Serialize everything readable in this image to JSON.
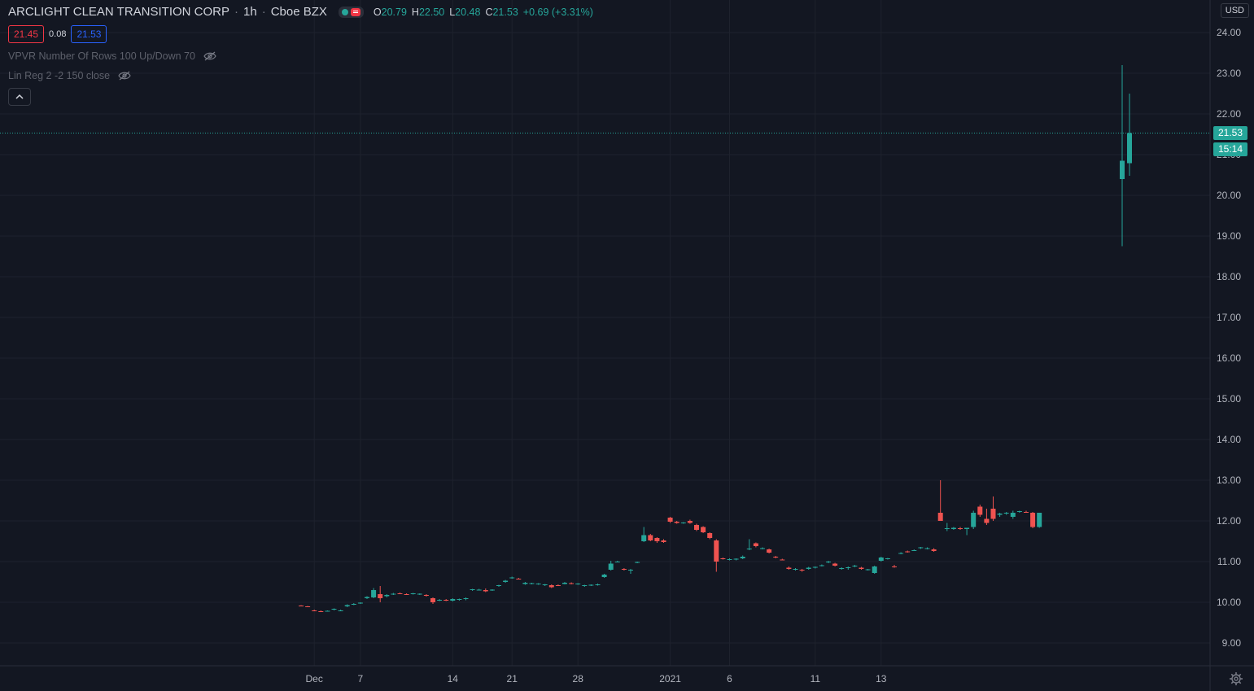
{
  "header": {
    "symbol_name": "ARCLIGHT CLEAN TRANSITION CORP",
    "interval": "1h",
    "exchange": "Cboe BZX",
    "ohlc": {
      "o_label": "O",
      "o_value": "20.79",
      "h_label": "H",
      "h_value": "22.50",
      "l_label": "L",
      "l_value": "20.48",
      "c_label": "C",
      "c_value": "21.53",
      "change": "+0.69 (+3.31%)"
    }
  },
  "quote": {
    "bid": "21.45",
    "spread": "0.08",
    "ask": "21.53"
  },
  "indicators": [
    {
      "label": "VPVR Number Of Rows 100 Up/Down 70"
    },
    {
      "label": "Lin Reg 2 -2 150 close"
    }
  ],
  "currency": "USD",
  "last_price_label": "21.53",
  "countdown_label": "15:14",
  "colors": {
    "up": "#26a69a",
    "down": "#ef5350",
    "background": "#131722",
    "grid": "#1e222d",
    "text": "#b2b5be"
  },
  "icons": {
    "visibility": "eye-crossed-icon",
    "collapse": "chevron-up-icon",
    "settings": "gear-icon"
  },
  "chart_data": {
    "type": "candlestick",
    "price_axis": {
      "min": 8.5,
      "max": 24.5,
      "ticks": [
        "24.00",
        "23.00",
        "22.00",
        "21.00",
        "20.00",
        "19.00",
        "18.00",
        "17.00",
        "16.00",
        "15.00",
        "14.00",
        "13.00",
        "12.00",
        "11.00",
        "10.00",
        "9.00"
      ]
    },
    "time_axis": {
      "min_bar": 0,
      "max_bar": 128,
      "ticks": [
        {
          "bar": 2,
          "label": "Dec"
        },
        {
          "bar": 9,
          "label": "7"
        },
        {
          "bar": 23,
          "label": "14"
        },
        {
          "bar": 32,
          "label": "21"
        },
        {
          "bar": 42,
          "label": "28"
        },
        {
          "bar": 56,
          "label": "2021"
        },
        {
          "bar": 65,
          "label": "6"
        },
        {
          "bar": 78,
          "label": "11"
        },
        {
          "bar": 88,
          "label": "13"
        }
      ]
    },
    "last_price": 21.53,
    "candles": [
      [
        9.92,
        9.93,
        9.9,
        9.91
      ],
      [
        9.9,
        9.91,
        9.88,
        9.89
      ],
      [
        9.8,
        9.82,
        9.78,
        9.79
      ],
      [
        9.78,
        9.8,
        9.76,
        9.77
      ],
      [
        9.78,
        9.8,
        9.77,
        9.79
      ],
      [
        9.82,
        9.85,
        9.8,
        9.84
      ],
      [
        9.8,
        9.82,
        9.78,
        9.8
      ],
      [
        9.9,
        9.95,
        9.88,
        9.93
      ],
      [
        9.95,
        9.98,
        9.93,
        9.96
      ],
      [
        9.98,
        10.0,
        9.96,
        9.99
      ],
      [
        10.1,
        10.15,
        10.08,
        10.13
      ],
      [
        10.12,
        10.35,
        10.1,
        10.3
      ],
      [
        10.2,
        10.4,
        10.0,
        10.1
      ],
      [
        10.15,
        10.2,
        10.12,
        10.18
      ],
      [
        10.2,
        10.23,
        10.18,
        10.21
      ],
      [
        10.22,
        10.24,
        10.2,
        10.21
      ],
      [
        10.2,
        10.22,
        10.18,
        10.19
      ],
      [
        10.21,
        10.23,
        10.19,
        10.22
      ],
      [
        10.2,
        10.22,
        10.18,
        10.21
      ],
      [
        10.18,
        10.2,
        10.14,
        10.16
      ],
      [
        10.1,
        10.12,
        9.96,
        10.0
      ],
      [
        10.05,
        10.08,
        10.03,
        10.06
      ],
      [
        10.06,
        10.08,
        10.03,
        10.04
      ],
      [
        10.04,
        10.1,
        10.02,
        10.08
      ],
      [
        10.06,
        10.09,
        10.04,
        10.08
      ],
      [
        10.08,
        10.12,
        10.05,
        10.1
      ],
      [
        10.3,
        10.33,
        10.28,
        10.32
      ],
      [
        10.3,
        10.33,
        10.29,
        10.31
      ],
      [
        10.3,
        10.34,
        10.25,
        10.27
      ],
      [
        10.3,
        10.32,
        10.28,
        10.31
      ],
      [
        10.4,
        10.43,
        10.38,
        10.42
      ],
      [
        10.5,
        10.55,
        10.48,
        10.53
      ],
      [
        10.6,
        10.63,
        10.58,
        10.61
      ],
      [
        10.58,
        10.6,
        10.56,
        10.57
      ],
      [
        10.45,
        10.5,
        10.43,
        10.48
      ],
      [
        10.46,
        10.48,
        10.44,
        10.47
      ],
      [
        10.45,
        10.47,
        10.43,
        10.46
      ],
      [
        10.43,
        10.45,
        10.4,
        10.44
      ],
      [
        10.42,
        10.44,
        10.35,
        10.37
      ],
      [
        10.42,
        10.44,
        10.4,
        10.41
      ],
      [
        10.45,
        10.5,
        10.44,
        10.48
      ],
      [
        10.47,
        10.49,
        10.44,
        10.45
      ],
      [
        10.45,
        10.47,
        10.43,
        10.46
      ],
      [
        10.4,
        10.43,
        10.38,
        10.42
      ],
      [
        10.42,
        10.44,
        10.4,
        10.43
      ],
      [
        10.43,
        10.46,
        10.41,
        10.44
      ],
      [
        10.62,
        10.7,
        10.6,
        10.68
      ],
      [
        10.8,
        11.02,
        10.78,
        10.95
      ],
      [
        11.0,
        11.02,
        10.98,
        11.0
      ],
      [
        10.82,
        10.84,
        10.78,
        10.8
      ],
      [
        10.78,
        10.82,
        10.7,
        10.8
      ],
      [
        10.98,
        11.0,
        10.96,
        10.99
      ],
      [
        11.5,
        11.85,
        11.48,
        11.65
      ],
      [
        11.65,
        11.68,
        11.5,
        11.52
      ],
      [
        11.58,
        11.6,
        11.46,
        11.5
      ],
      [
        11.52,
        11.55,
        11.46,
        11.48
      ],
      [
        12.08,
        12.1,
        11.95,
        11.98
      ],
      [
        11.98,
        12.0,
        11.93,
        11.95
      ],
      [
        11.95,
        11.97,
        11.93,
        11.96
      ],
      [
        12.0,
        12.03,
        11.93,
        11.95
      ],
      [
        11.9,
        11.93,
        11.75,
        11.78
      ],
      [
        11.85,
        11.87,
        11.7,
        11.72
      ],
      [
        11.7,
        11.72,
        11.55,
        11.58
      ],
      [
        11.52,
        11.55,
        10.75,
        11.0
      ],
      [
        11.08,
        11.1,
        11.05,
        11.07
      ],
      [
        11.05,
        11.08,
        11.03,
        11.06
      ],
      [
        11.05,
        11.08,
        11.03,
        11.07
      ],
      [
        11.08,
        11.15,
        11.06,
        11.12
      ],
      [
        11.3,
        11.55,
        11.28,
        11.32
      ],
      [
        11.45,
        11.47,
        11.35,
        11.38
      ],
      [
        11.32,
        11.35,
        11.3,
        11.33
      ],
      [
        11.3,
        11.32,
        11.2,
        11.22
      ],
      [
        11.12,
        11.14,
        11.08,
        11.1
      ],
      [
        11.05,
        11.07,
        11.03,
        11.04
      ],
      [
        10.85,
        10.88,
        10.8,
        10.82
      ],
      [
        10.8,
        10.84,
        10.78,
        10.82
      ],
      [
        10.8,
        10.82,
        10.75,
        10.78
      ],
      [
        10.82,
        10.87,
        10.8,
        10.85
      ],
      [
        10.85,
        10.88,
        10.83,
        10.87
      ],
      [
        10.9,
        10.93,
        10.88,
        10.91
      ],
      [
        10.98,
        11.02,
        10.96,
        11.0
      ],
      [
        10.95,
        10.97,
        10.88,
        10.9
      ],
      [
        10.82,
        10.86,
        10.8,
        10.84
      ],
      [
        10.85,
        10.88,
        10.8,
        10.86
      ],
      [
        10.88,
        10.92,
        10.86,
        10.9
      ],
      [
        10.85,
        10.87,
        10.8,
        10.82
      ],
      [
        10.8,
        10.82,
        10.78,
        10.81
      ],
      [
        10.72,
        10.9,
        10.7,
        10.88
      ],
      [
        11.02,
        11.12,
        11.0,
        11.1
      ],
      [
        11.07,
        11.09,
        11.05,
        11.08
      ],
      [
        10.88,
        10.92,
        10.85,
        10.87
      ],
      [
        11.2,
        11.23,
        11.18,
        11.21
      ],
      [
        11.25,
        11.27,
        11.22,
        11.24
      ],
      [
        11.27,
        11.3,
        11.26,
        11.28
      ],
      [
        11.33,
        11.36,
        11.31,
        11.35
      ],
      [
        11.32,
        11.35,
        11.3,
        11.33
      ],
      [
        11.3,
        11.33,
        11.24,
        11.26
      ],
      [
        12.2,
        13.0,
        12.0,
        12.0
      ],
      [
        11.8,
        11.95,
        11.75,
        11.82
      ],
      [
        11.8,
        11.85,
        11.78,
        11.83
      ],
      [
        11.82,
        11.85,
        11.78,
        11.81
      ],
      [
        11.8,
        11.82,
        11.65,
        11.83
      ],
      [
        11.85,
        12.25,
        11.8,
        12.2
      ],
      [
        12.35,
        12.4,
        12.1,
        12.15
      ],
      [
        12.05,
        12.3,
        11.9,
        11.95
      ],
      [
        12.3,
        12.6,
        12.0,
        12.05
      ],
      [
        12.15,
        12.2,
        12.1,
        12.18
      ],
      [
        12.18,
        12.22,
        12.15,
        12.2
      ],
      [
        12.1,
        12.25,
        12.05,
        12.2
      ],
      [
        12.22,
        12.25,
        12.2,
        12.24
      ],
      [
        12.22,
        12.25,
        12.2,
        12.21
      ],
      [
        12.2,
        12.22,
        11.82,
        11.85
      ],
      [
        11.85,
        12.2,
        11.83,
        12.2
      ],
      [
        20.4,
        23.2,
        18.75,
        20.85
      ],
      [
        20.79,
        22.5,
        20.48,
        21.53
      ]
    ]
  }
}
